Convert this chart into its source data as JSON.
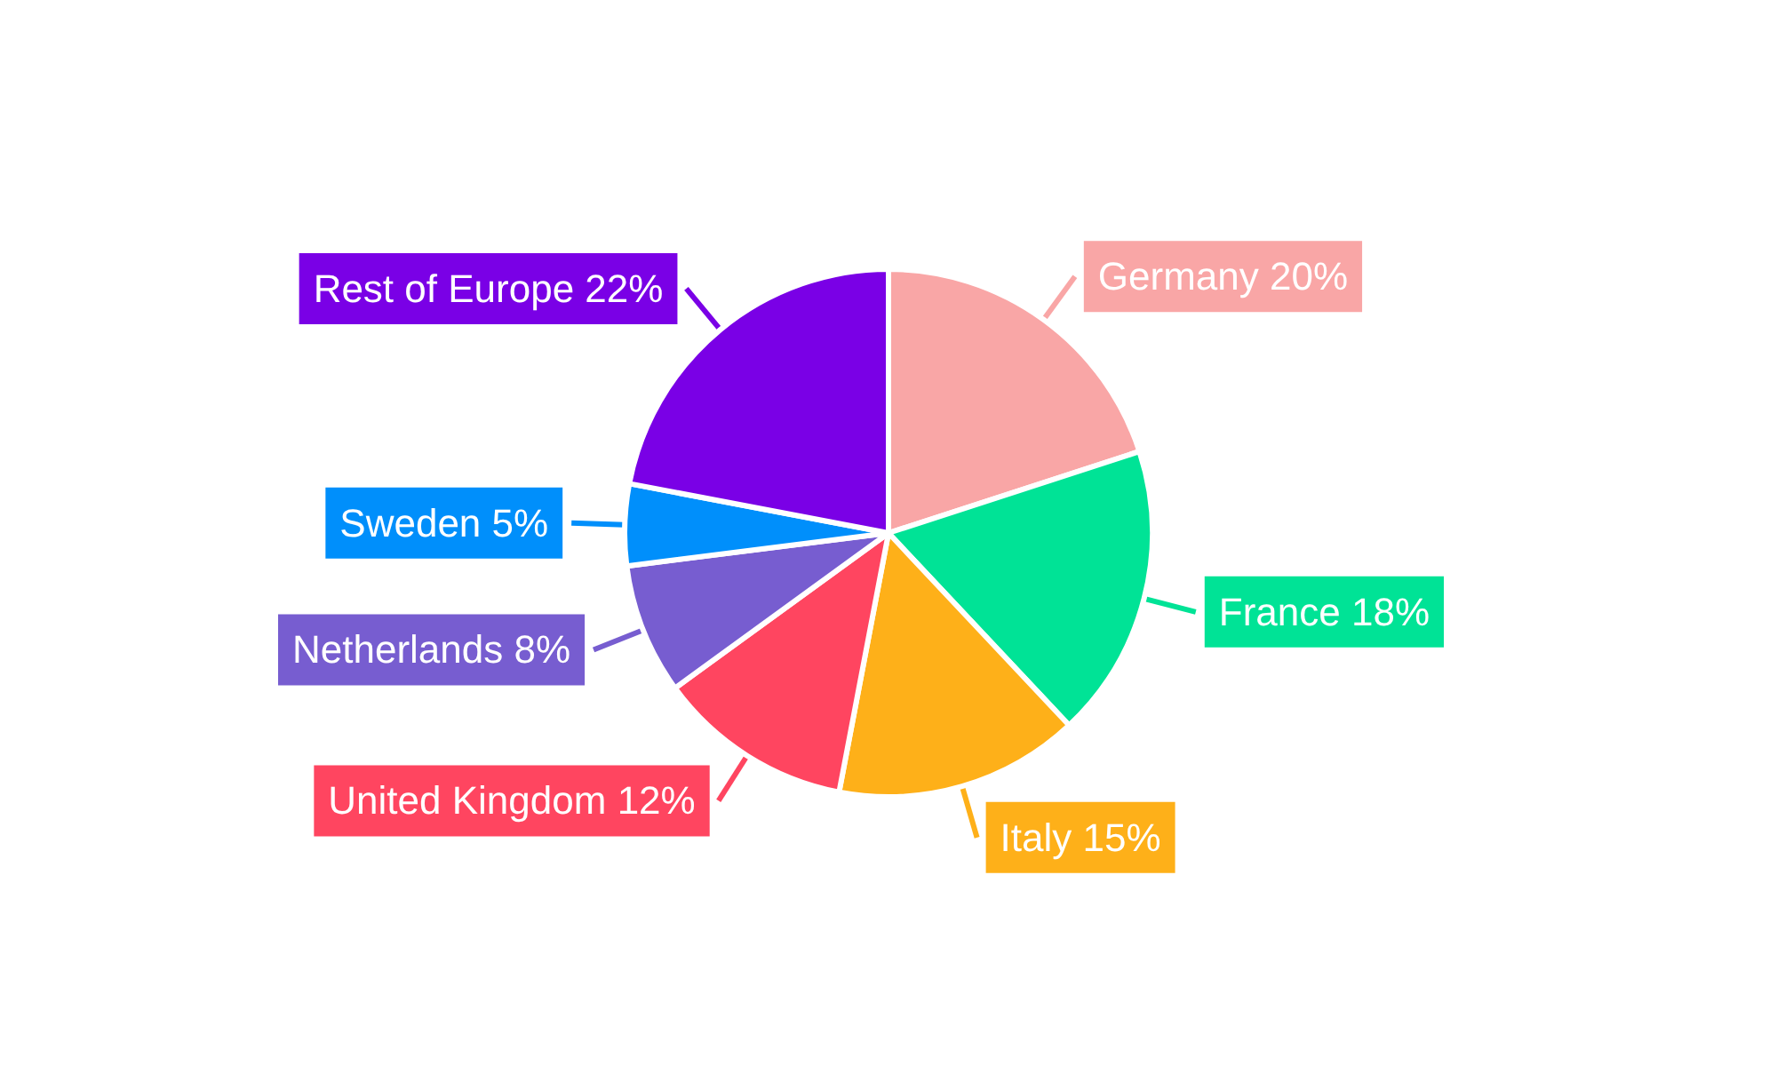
{
  "chart_data": {
    "type": "pie",
    "categories": [
      "Germany",
      "France",
      "Italy",
      "United Kingdom",
      "Netherlands",
      "Sweden",
      "Rest of Europe"
    ],
    "values": [
      20,
      18,
      15,
      12,
      8,
      5,
      22
    ],
    "value_labels": [
      "20%",
      "18%",
      "15%",
      "12%",
      "8%",
      "5%",
      "22%"
    ],
    "colors": [
      "#f9a6a6",
      "#00e396",
      "#feb019",
      "#ff4560",
      "#775dd0",
      "#008ffb",
      "#7a00e6"
    ],
    "legend": false
  }
}
